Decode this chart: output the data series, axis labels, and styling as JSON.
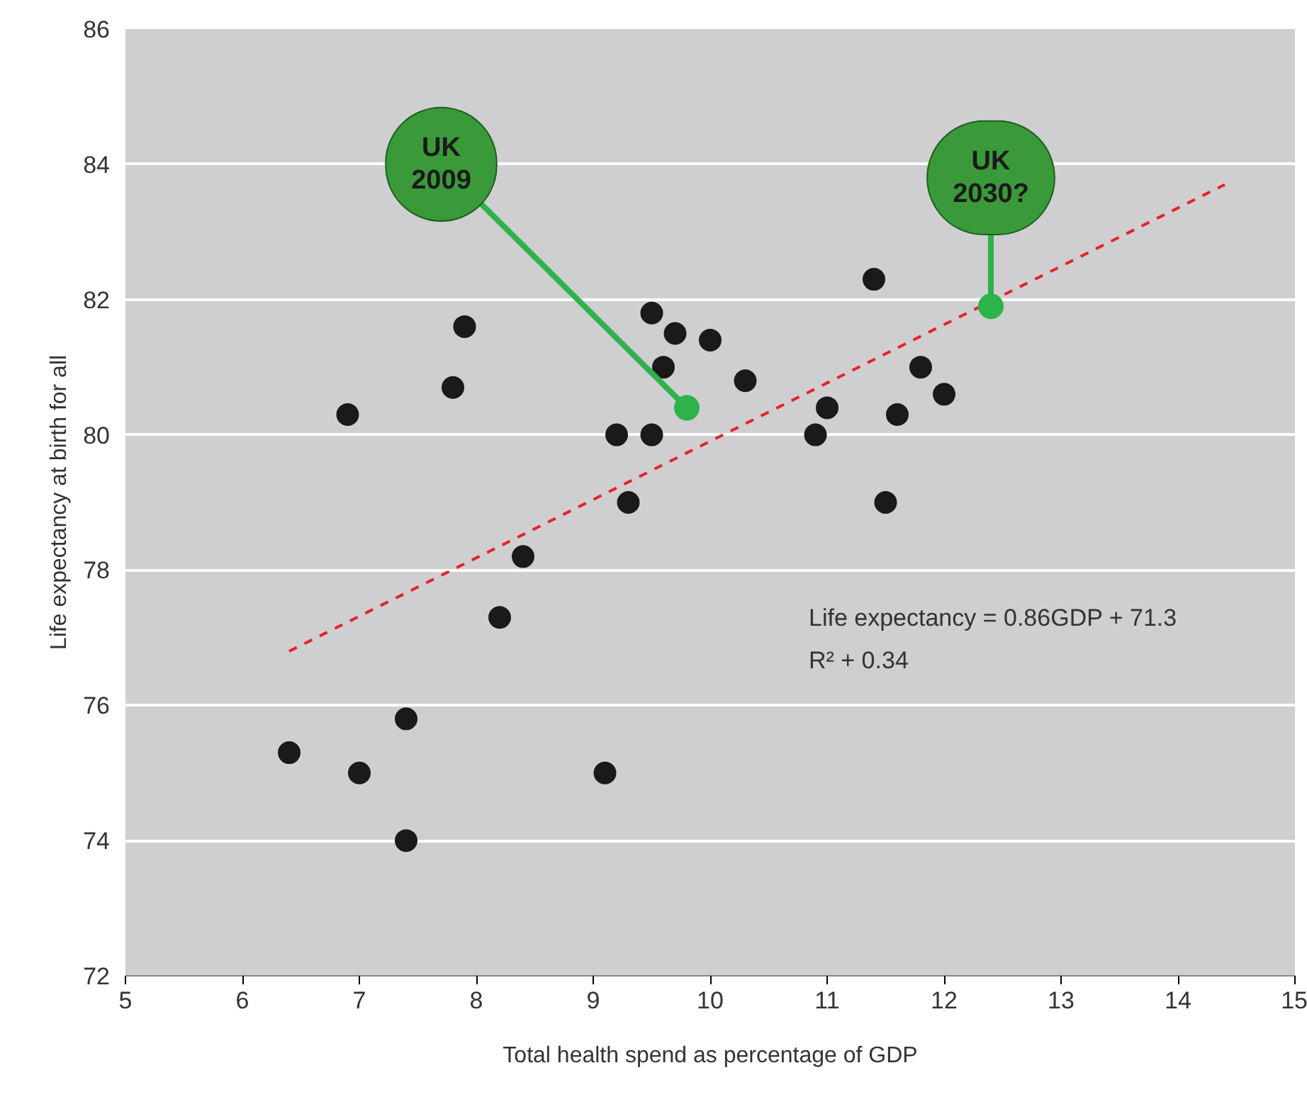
{
  "chart_data": {
    "type": "scatter",
    "xlabel": "Total health spend as percentage of GDP",
    "ylabel": "Life expectancy at birth for all",
    "xlim": [
      5,
      15
    ],
    "xticks": [
      5,
      6,
      7,
      8,
      9,
      10,
      11,
      12,
      13,
      14,
      15
    ],
    "ylim": [
      72,
      86
    ],
    "yticks": [
      72,
      74,
      76,
      78,
      80,
      82,
      84,
      86
    ],
    "grid": "y",
    "marker": "circle",
    "series": [
      {
        "color": "#1a1a1a",
        "x": [
          6.4,
          6.9,
          7.0,
          7.4,
          7.4,
          7.8,
          7.9,
          8.2,
          8.4,
          9.1,
          9.2,
          9.3,
          9.5,
          9.5,
          9.6,
          9.7,
          10.0,
          10.3,
          10.9,
          11.0,
          11.4,
          11.5,
          11.6,
          11.8,
          12.0
        ],
        "values": [
          75.3,
          80.3,
          75.0,
          75.8,
          74.0,
          80.7,
          81.6,
          77.3,
          78.2,
          75.0,
          80.0,
          79.0,
          80.0,
          81.8,
          81.0,
          81.5,
          81.4,
          80.8,
          80.0,
          80.4,
          82.3,
          79.0,
          80.3,
          81.0,
          80.6
        ]
      },
      {
        "color": "#2db34a",
        "x": [
          9.8,
          12.4
        ],
        "values": [
          80.4,
          81.9
        ]
      },
      {
        "type": "line",
        "color": "#e8212a",
        "line_style": "dashed",
        "marker": "none",
        "x": [
          6.4,
          14.4
        ],
        "values": [
          76.8,
          83.7
        ]
      }
    ],
    "annotations": [
      {
        "text": "UK\n2009",
        "x": 9.8,
        "y": 80.4
      },
      {
        "text": "UK\n2030?",
        "x": 12.4,
        "y": 81.9
      },
      "Life expectancy = 0.86GDP + 71.3",
      "R² + 0.34"
    ]
  }
}
